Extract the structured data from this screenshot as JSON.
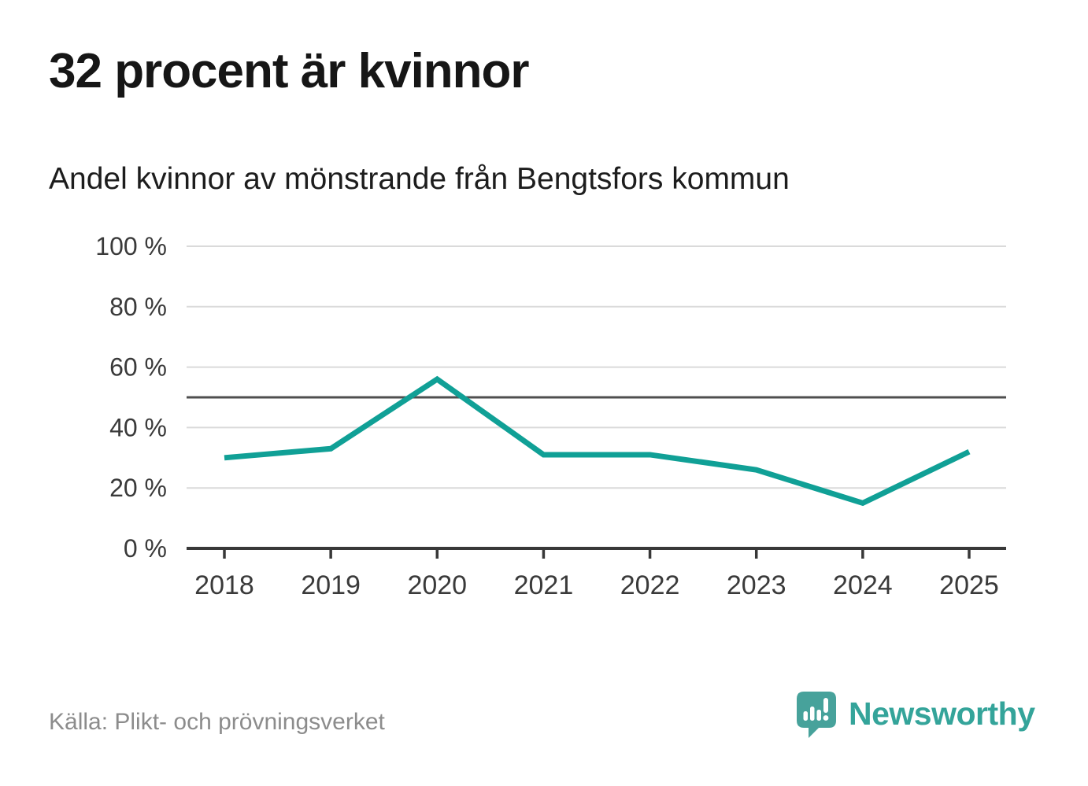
{
  "header": {
    "title": "32 procent är kvinnor",
    "subtitle": "Andel kvinnor av mönstrande från Bengtsfors kommun"
  },
  "chart_data": {
    "type": "line",
    "title": "32 procent är kvinnor",
    "subtitle": "Andel kvinnor av mönstrande från Bengtsfors kommun",
    "categories": [
      "2018",
      "2019",
      "2020",
      "2021",
      "2022",
      "2023",
      "2024",
      "2025"
    ],
    "series": [
      {
        "name": "Andel kvinnor av mönstrande",
        "values": [
          30,
          33,
          56,
          31,
          31,
          26,
          15,
          32
        ]
      }
    ],
    "xlabel": "",
    "ylabel": "",
    "ylim": [
      0,
      100
    ],
    "yticks": [
      0,
      20,
      40,
      60,
      80,
      100
    ],
    "ytick_suffix": " %",
    "reference_line": 50,
    "grid": true,
    "legend": "none",
    "colors": {
      "line": "#10a096",
      "grid": "#dadada",
      "axis": "#383838",
      "reference": "#4f4f4f",
      "tick_label": "#3a3a3a"
    }
  },
  "footer": {
    "source": "Källa: Plikt- och prövningsverket",
    "brand": "Newsworthy",
    "brand_color": "#34a49a",
    "logo_bubble_color": "#47a29b"
  }
}
